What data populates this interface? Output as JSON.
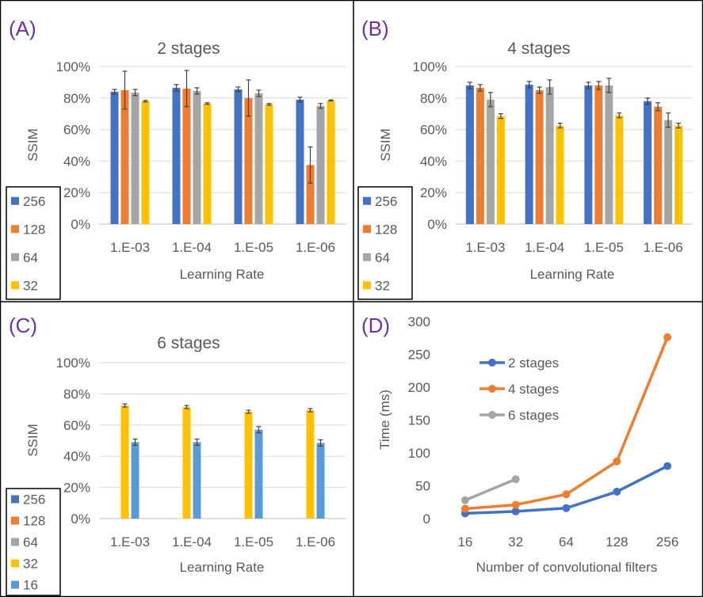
{
  "colors": {
    "s256": "#4472C4",
    "s128": "#ED7D31",
    "s64": "#A5A5A5",
    "s32": "#FFC000",
    "s16": "#5B9BD5",
    "panel_letter": "#7030A0",
    "text": "#595959",
    "grid": "#D9D9D9",
    "axis": "#BFBFBF",
    "border": "#000000",
    "errbar": "#404040"
  },
  "chart_data": [
    {
      "panel": "(A)",
      "type": "bar",
      "title": "2 stages",
      "xlabel": "Learning Rate",
      "ylabel": "SSIM",
      "ylim": [
        0,
        100
      ],
      "yticks": [
        "0%",
        "20%",
        "40%",
        "60%",
        "80%",
        "100%"
      ],
      "categories": [
        "1.E-03",
        "1.E-04",
        "1.E-05",
        "1.E-06"
      ],
      "series": [
        {
          "name": "256",
          "color_key": "s256",
          "values": [
            84,
            86.5,
            85.5,
            79
          ],
          "errors": [
            1.5,
            2,
            1.5,
            1.5
          ]
        },
        {
          "name": "128",
          "color_key": "s128",
          "values": [
            85,
            86,
            80,
            37.5
          ],
          "errors": [
            12,
            11.5,
            11.5,
            11.5
          ]
        },
        {
          "name": "64",
          "color_key": "s64",
          "values": [
            83.5,
            84.5,
            83,
            75
          ],
          "errors": [
            2,
            2,
            2,
            1.5
          ]
        },
        {
          "name": "32",
          "color_key": "s32",
          "values": [
            78,
            76.5,
            76,
            78.5
          ],
          "errors": [
            0.5,
            0.5,
            0.5,
            0.3
          ]
        }
      ],
      "legend": [
        "256",
        "128",
        "64",
        "32"
      ]
    },
    {
      "panel": "(B)",
      "type": "bar",
      "title": "4 stages",
      "xlabel": "Learning Rate",
      "ylabel": "SSIM",
      "ylim": [
        0,
        100
      ],
      "yticks": [
        "0%",
        "20%",
        "40%",
        "60%",
        "80%",
        "100%"
      ],
      "categories": [
        "1.E-03",
        "1.E-04",
        "1.E-05",
        "1.E-06"
      ],
      "series": [
        {
          "name": "256",
          "color_key": "s256",
          "values": [
            88,
            88.5,
            88,
            78
          ],
          "errors": [
            2,
            2,
            2,
            2
          ]
        },
        {
          "name": "128",
          "color_key": "s128",
          "values": [
            86.5,
            85,
            88,
            74.5
          ],
          "errors": [
            2,
            2,
            2.5,
            2.5
          ]
        },
        {
          "name": "64",
          "color_key": "s64",
          "values": [
            79,
            87,
            88,
            66
          ],
          "errors": [
            4.5,
            4.5,
            4.5,
            4.5
          ]
        },
        {
          "name": "32",
          "color_key": "s32",
          "values": [
            68.5,
            62.5,
            69,
            62.5
          ],
          "errors": [
            1.5,
            1.5,
            1.5,
            1.5
          ]
        }
      ],
      "legend": [
        "256",
        "128",
        "64",
        "32"
      ]
    },
    {
      "panel": "(C)",
      "type": "bar",
      "title": "6 stages",
      "xlabel": "Learning Rate",
      "ylabel": "SSIM",
      "ylim": [
        0,
        100
      ],
      "yticks": [
        "0%",
        "20%",
        "40%",
        "60%",
        "80%",
        "100%"
      ],
      "categories": [
        "1.E-03",
        "1.E-04",
        "1.E-05",
        "1.E-06"
      ],
      "series": [
        {
          "name": "32",
          "color_key": "s32",
          "values": [
            72.5,
            71.5,
            68.5,
            69.5
          ],
          "errors": [
            1,
            1,
            1,
            1
          ]
        },
        {
          "name": "16",
          "color_key": "s16",
          "values": [
            49,
            49,
            57,
            48.5
          ],
          "errors": [
            2,
            2,
            2,
            2
          ]
        }
      ],
      "legend": [
        "256",
        "128",
        "64",
        "32",
        "16"
      ]
    },
    {
      "panel": "(D)",
      "type": "line",
      "xlabel": "Number of convolutional filters",
      "ylabel": "Time (ms)",
      "ylim": [
        0,
        300
      ],
      "yticks": [
        "0",
        "50",
        "100",
        "150",
        "200",
        "250",
        "300"
      ],
      "categories": [
        "16",
        "32",
        "64",
        "128",
        "256"
      ],
      "series": [
        {
          "name": "2 stages",
          "color_key": "s256",
          "values": [
            8,
            11,
            16,
            41,
            80
          ]
        },
        {
          "name": "4 stages",
          "color_key": "s128",
          "values": [
            15,
            21,
            37,
            87,
            276
          ]
        },
        {
          "name": "6 stages",
          "color_key": "s64",
          "values": [
            28,
            60,
            null,
            null,
            null
          ]
        }
      ]
    }
  ]
}
